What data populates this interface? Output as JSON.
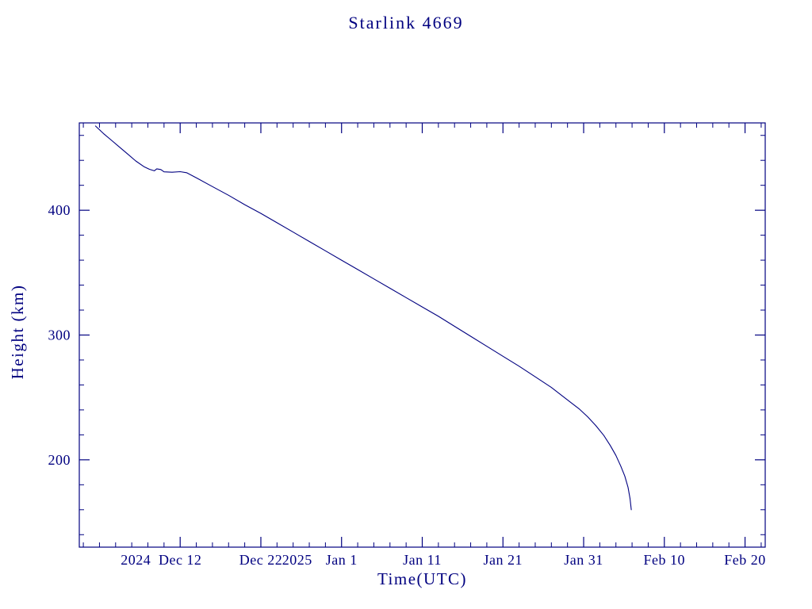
{
  "chart_data": {
    "type": "line",
    "title": "Starlink 4669",
    "xlabel": "Time(UTC)",
    "ylabel": "Height (km)",
    "color": "#000080",
    "background": "#ffffff",
    "x_unit": "days since 2024-12-02 00:00 UTC",
    "xlim": [
      -2.5,
      82.5
    ],
    "ylim": [
      130,
      470
    ],
    "grid": false,
    "legend": "none",
    "x_ticks": [
      {
        "day": 10,
        "label": "Dec 12",
        "prefix": "2024"
      },
      {
        "day": 20,
        "label": "Dec 22"
      },
      {
        "day": 30,
        "label": "Jan 1",
        "prefix": "2025"
      },
      {
        "day": 40,
        "label": "Jan 11"
      },
      {
        "day": 50,
        "label": "Jan 21"
      },
      {
        "day": 60,
        "label": "Jan 31"
      },
      {
        "day": 70,
        "label": "Feb 10"
      },
      {
        "day": 80,
        "label": "Feb 20"
      }
    ],
    "x_minor_step": 2,
    "y_ticks": [
      {
        "value": 200,
        "label": "200"
      },
      {
        "value": 300,
        "label": "300"
      },
      {
        "value": 400,
        "label": "400"
      }
    ],
    "y_minor_step": 20,
    "series": [
      {
        "name": "Starlink 4669 orbital height (km)",
        "points": [
          [
            -0.5,
            467.5
          ],
          [
            0.5,
            461.5
          ],
          [
            1.5,
            456.0
          ],
          [
            2.5,
            450.5
          ],
          [
            3.5,
            445.0
          ],
          [
            4.5,
            439.5
          ],
          [
            5.5,
            435.0
          ],
          [
            6.2,
            432.8
          ],
          [
            6.8,
            431.6
          ],
          [
            7.1,
            433.2
          ],
          [
            7.6,
            432.6
          ],
          [
            8.0,
            430.8
          ],
          [
            9.0,
            430.5
          ],
          [
            10.0,
            430.9
          ],
          [
            10.8,
            430.1
          ],
          [
            12,
            426.0
          ],
          [
            14,
            419.0
          ],
          [
            16,
            412.0
          ],
          [
            18,
            404.5
          ],
          [
            20,
            397.5
          ],
          [
            22,
            390.0
          ],
          [
            24,
            382.5
          ],
          [
            26,
            375.0
          ],
          [
            28,
            367.5
          ],
          [
            30,
            360.0
          ],
          [
            32,
            352.5
          ],
          [
            34,
            345.0
          ],
          [
            36,
            337.5
          ],
          [
            38,
            330.0
          ],
          [
            40,
            322.5
          ],
          [
            42,
            315.0
          ],
          [
            44,
            307.0
          ],
          [
            46,
            299.0
          ],
          [
            48,
            291.0
          ],
          [
            50,
            283.0
          ],
          [
            52,
            275.0
          ],
          [
            54,
            266.5
          ],
          [
            56,
            258.0
          ],
          [
            57.5,
            250.5
          ],
          [
            58.5,
            245.5
          ],
          [
            59.5,
            240.5
          ],
          [
            60.5,
            234.5
          ],
          [
            61.5,
            227.5
          ],
          [
            62.5,
            219.5
          ],
          [
            63.3,
            211.5
          ],
          [
            64.0,
            203.5
          ],
          [
            64.6,
            195.0
          ],
          [
            65.1,
            187.0
          ],
          [
            65.5,
            178.0
          ],
          [
            65.75,
            169.0
          ],
          [
            65.9,
            160.0
          ]
        ]
      }
    ]
  }
}
